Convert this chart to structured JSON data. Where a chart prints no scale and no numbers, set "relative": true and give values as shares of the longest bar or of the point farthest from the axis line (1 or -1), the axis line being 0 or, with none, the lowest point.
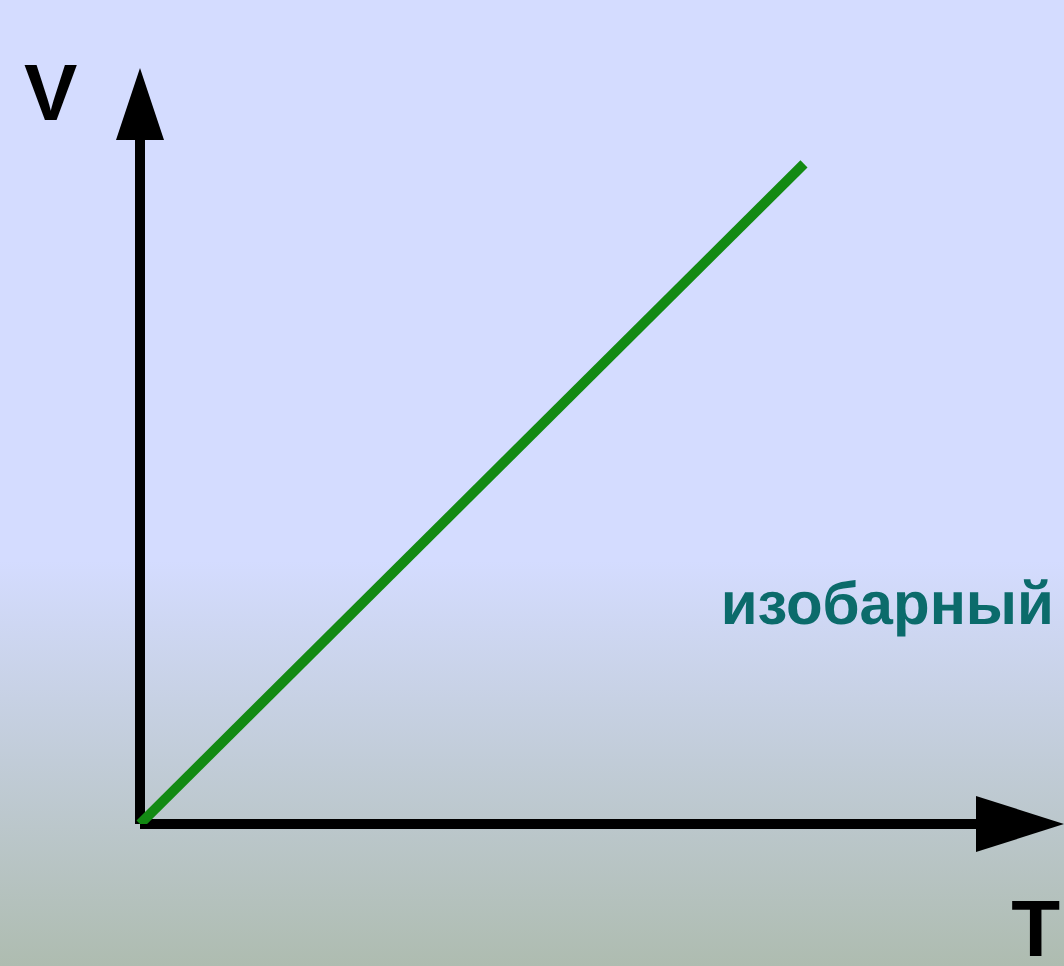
{
  "chart_data": {
    "type": "line",
    "xlabel": "T",
    "ylabel": "V",
    "relative": true,
    "categories": [
      null,
      null
    ],
    "series": [
      {
        "color": "#138a13",
        "values": [
          0,
          1
        ]
      }
    ],
    "annotations": [
      "изобарный"
    ]
  }
}
